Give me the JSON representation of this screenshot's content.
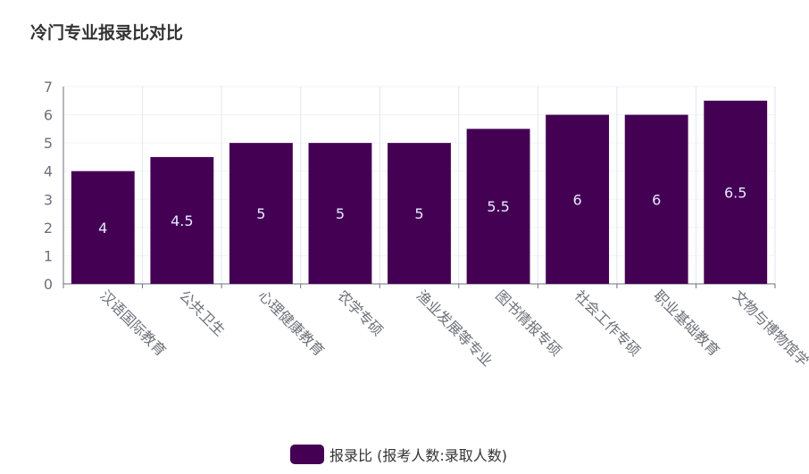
{
  "title": "冷门专业报录比对比",
  "colors": {
    "bar": "#440154",
    "axis": "#6e7079",
    "grid": "#e0e6f1"
  },
  "chart_data": {
    "type": "bar",
    "categories": [
      "汉语国际教育",
      "公共卫生",
      "心理健康教育",
      "农学专硕",
      "渔业发展等专业",
      "图书情报专硕",
      "社会工作专硕",
      "职业基础教育",
      "文物与博物馆学"
    ],
    "series": [
      {
        "name": "报录比 (报考人数:录取人数)",
        "values": [
          4,
          4.5,
          5,
          5,
          5,
          5.5,
          6,
          6,
          6.5
        ]
      }
    ],
    "ylim": [
      0,
      7
    ],
    "yticks": [
      0,
      1,
      2,
      3,
      4,
      5,
      6,
      7
    ],
    "grid": true,
    "legend": "bottom-center"
  }
}
